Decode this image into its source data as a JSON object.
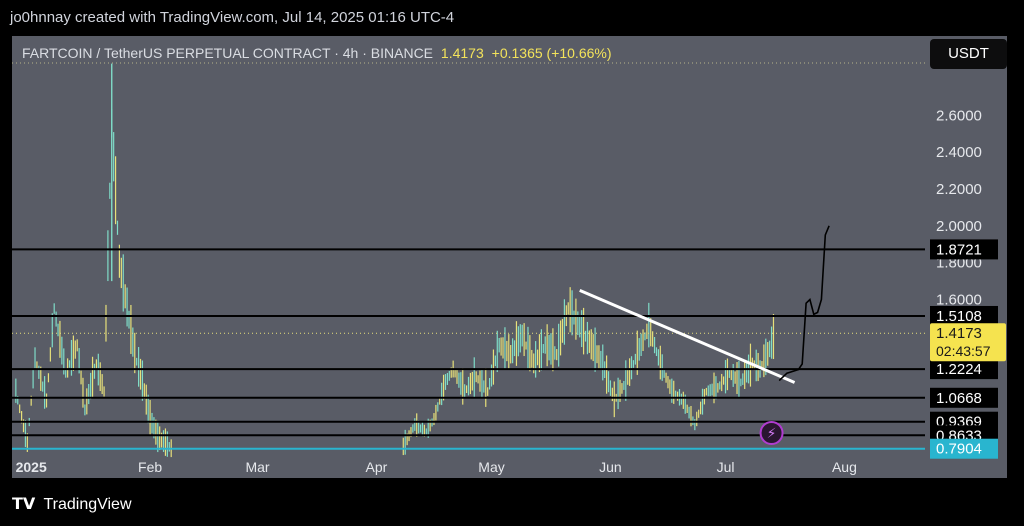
{
  "caption": "jo0hnnay created with TradingView.com, Jul 14, 2025 01:16 UTC-4",
  "symbol": {
    "name": "FARTCOIN / TetherUS PERPETUAL CONTRACT · 4h · BINANCE",
    "price": "1.4173",
    "change": "+0.1365 (+10.66%)"
  },
  "currency_button": "USDT",
  "footer": {
    "brand": "TradingView"
  },
  "colors": {
    "plot_bg": "#595c66",
    "candle_up": "#e7e07a",
    "candle_down": "#7fdcc8",
    "level_line": "#000000",
    "support_line": "#29b5cf",
    "trendline": "#ffffff",
    "price_tag": "#f5e34f"
  },
  "chart_data": {
    "type": "line",
    "title": "FARTCOIN / TetherUS PERPETUAL CONTRACT · 4h · BINANCE",
    "ylim": [
      0.74,
      2.9
    ],
    "y_ticks": [
      2.6,
      2.4,
      2.2,
      2.0,
      1.8,
      1.6
    ],
    "y_tick_labels": [
      "2.6000",
      "2.4000",
      "2.2000",
      "2.0000",
      "1.8000",
      "1.6000"
    ],
    "x_ticks": [
      {
        "label": "2025",
        "date": "2025-01-01"
      },
      {
        "label": "Feb",
        "date": "2025-02-01"
      },
      {
        "label": "Mar",
        "date": "2025-03-01"
      },
      {
        "label": "Apr",
        "date": "2025-04-01"
      },
      {
        "label": "May",
        "date": "2025-05-01"
      },
      {
        "label": "Jun",
        "date": "2025-06-01"
      },
      {
        "label": "Jul",
        "date": "2025-07-01"
      },
      {
        "label": "Aug",
        "date": "2025-08-01"
      }
    ],
    "xlim": [
      "2024-12-27",
      "2025-08-22"
    ],
    "series": [
      {
        "type": "ohlc-approx",
        "x": [
          "2024-12-28",
          "2024-12-31",
          "2025-01-02",
          "2025-01-05",
          "2025-01-07",
          "2025-01-10",
          "2025-01-13",
          "2025-01-15",
          "2025-01-18",
          "2025-01-20",
          "2025-01-22",
          "2025-01-24",
          "2025-01-26",
          "2025-01-28",
          "2025-01-30",
          "2025-02-01",
          "2025-02-03",
          "2025-02-05",
          "2025-02-07",
          "2025-04-08",
          "2025-04-11",
          "2025-04-14",
          "2025-04-16",
          "2025-04-19",
          "2025-04-21",
          "2025-04-24",
          "2025-04-27",
          "2025-04-30",
          "2025-05-03",
          "2025-05-06",
          "2025-05-09",
          "2025-05-12",
          "2025-05-15",
          "2025-05-18",
          "2025-05-21",
          "2025-05-24",
          "2025-05-27",
          "2025-05-30",
          "2025-06-02",
          "2025-06-05",
          "2025-06-08",
          "2025-06-11",
          "2025-06-14",
          "2025-06-17",
          "2025-06-20",
          "2025-06-23",
          "2025-06-26",
          "2025-06-29",
          "2025-07-02",
          "2025-07-05",
          "2025-07-08",
          "2025-07-10",
          "2025-07-12",
          "2025-07-14"
        ],
        "y": [
          1.1,
          0.82,
          1.28,
          1.05,
          1.55,
          1.2,
          1.35,
          1.0,
          1.25,
          1.1,
          2.55,
          1.8,
          1.55,
          1.3,
          1.15,
          0.95,
          0.85,
          0.82,
          0.78,
          0.8,
          0.92,
          0.88,
          0.95,
          1.15,
          1.22,
          1.1,
          1.18,
          1.1,
          1.35,
          1.3,
          1.4,
          1.25,
          1.35,
          1.3,
          1.55,
          1.45,
          1.35,
          1.25,
          1.05,
          1.15,
          1.3,
          1.45,
          1.25,
          1.1,
          1.05,
          0.92,
          1.1,
          1.12,
          1.2,
          1.15,
          1.25,
          1.22,
          1.3,
          1.4173
        ]
      }
    ],
    "levels": [
      {
        "value": 1.8721,
        "label": "1.8721"
      },
      {
        "value": 1.5108,
        "label": "1.5108"
      },
      {
        "value": 1.2224,
        "label": "1.2224"
      },
      {
        "value": 1.0668,
        "label": "1.0668"
      },
      {
        "value": 0.9369,
        "label": "0.9369"
      },
      {
        "value": 0.8633,
        "label": "0.8633"
      },
      {
        "value": 0.7904,
        "label": "0.7904",
        "style": "support"
      }
    ],
    "current_price": {
      "value": 1.4173,
      "label": "1.4173",
      "countdown": "02:43:57"
    },
    "trendline": {
      "x": [
        "2025-05-24",
        "2025-07-19"
      ],
      "y": [
        1.65,
        1.15
      ]
    },
    "projection": {
      "x": [
        "2025-07-15",
        "2025-07-17",
        "2025-07-20",
        "2025-07-21",
        "2025-07-22",
        "2025-07-23",
        "2025-07-24",
        "2025-07-25",
        "2025-07-26",
        "2025-07-27",
        "2025-07-28"
      ],
      "y": [
        1.16,
        1.2,
        1.22,
        1.25,
        1.58,
        1.6,
        1.52,
        1.53,
        1.6,
        1.95,
        2.0
      ]
    }
  }
}
